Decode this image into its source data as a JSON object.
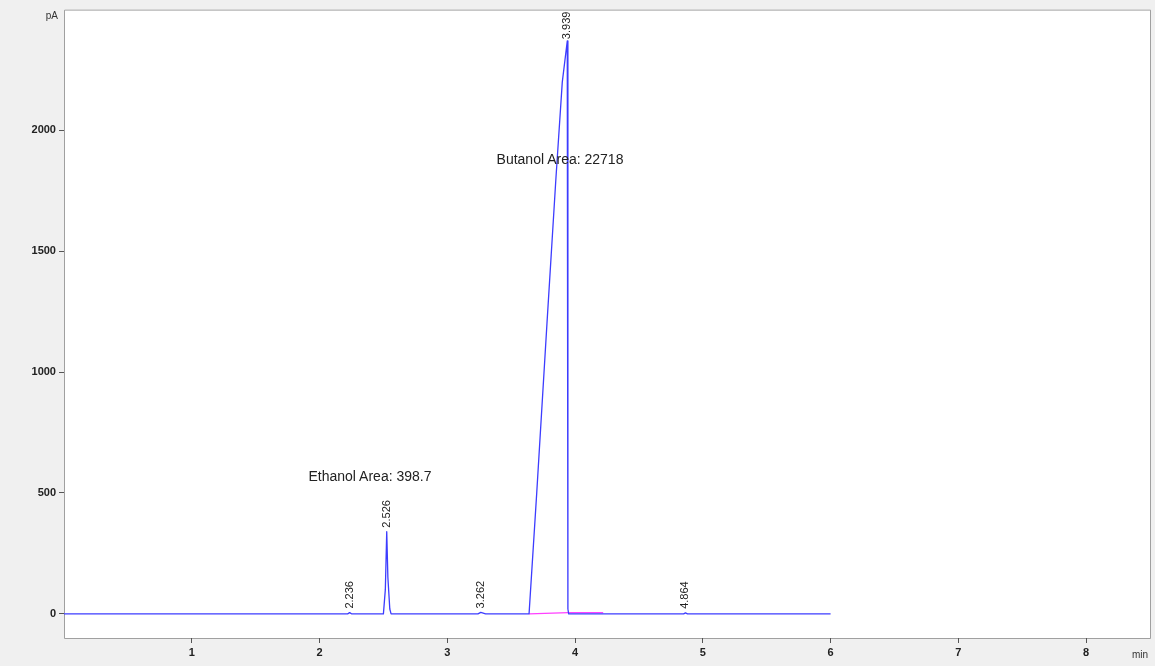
{
  "chart_data": {
    "type": "line",
    "xlabel": "min",
    "ylabel": "pA",
    "xlim": [
      0,
      8.5
    ],
    "xticks": [
      1,
      2,
      3,
      4,
      5,
      6,
      7,
      8
    ],
    "ylim": [
      -100,
      2500
    ],
    "yticks": [
      0,
      500,
      1000,
      1500,
      2000
    ],
    "grid": false,
    "legend": false,
    "marker": "none",
    "line_style": "solid",
    "series": [
      {
        "color": "#3c3cff",
        "x": [
          0,
          2.22,
          2.236,
          2.25,
          2.5,
          2.515,
          2.526,
          2.535,
          2.55,
          2.56,
          3.24,
          3.262,
          3.3,
          3.64,
          3.7,
          3.78,
          3.85,
          3.9,
          3.939,
          3.944,
          3.95,
          4.85,
          4.864,
          4.88,
          6.0
        ],
        "values": [
          0,
          0,
          5,
          0,
          0,
          100,
          340,
          150,
          20,
          0,
          0,
          6,
          0,
          0,
          500,
          1200,
          1800,
          2200,
          2370,
          20,
          0,
          0,
          4,
          0,
          0
        ]
      },
      {
        "color": "#ff40ff",
        "x": [
          3.64,
          3.95,
          4.22
        ],
        "values": [
          0,
          5,
          5
        ]
      }
    ],
    "annotations": [
      "Ethanol Area: 398.7",
      "Butanol Area: 22718",
      {
        "text": "2.236",
        "x": 2.236,
        "y": 5
      },
      {
        "text": "2.526",
        "x": 2.526,
        "y": 340
      },
      {
        "text": "3.262",
        "x": 3.262,
        "y": 6
      },
      {
        "text": "3.939",
        "x": 3.939,
        "y": 2370
      },
      {
        "text": "4.864",
        "x": 4.864,
        "y": 4
      }
    ]
  }
}
